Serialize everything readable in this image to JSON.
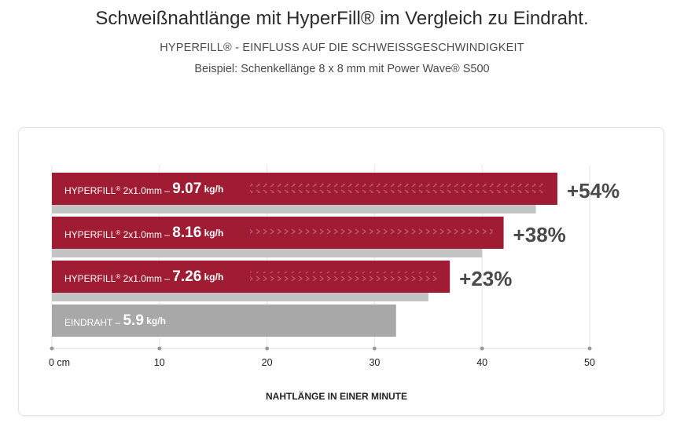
{
  "header": {
    "title": "Schweißnahtlänge mit HyperFill® im Vergleich zu Eindraht.",
    "subtitle": "HYPERFILL® - EINFLUSS AUF DIE SCHWEISSGESCHWINDIGKEIT",
    "example": "Beispiel: Schenkellänge 8 x 8 mm mit Power Wave® S500"
  },
  "colors": {
    "hyperfill": "#a01c33",
    "eindraht": "#a8a8a8",
    "shadow": "#c4c4c4",
    "percent": "#4a4a4a"
  },
  "chart_data": {
    "type": "bar",
    "orientation": "horizontal",
    "xlabel": "NAHTLÄNGE IN EINER MINUTE",
    "xlim": [
      0,
      50
    ],
    "x_ticks": [
      {
        "value": 0,
        "label": "0 cm"
      },
      {
        "value": 10,
        "label": "10"
      },
      {
        "value": 20,
        "label": "20"
      },
      {
        "value": 30,
        "label": "30"
      },
      {
        "value": 40,
        "label": "40"
      },
      {
        "value": 50,
        "label": "50"
      }
    ],
    "grid": true,
    "bars": [
      {
        "name": "HYPERFILL",
        "sup": "®",
        "spec": "2x1.0mm",
        "rate": "9.07",
        "unit": "kg/h",
        "value": 47,
        "shadow_value": 45,
        "gain": "+54%",
        "kind": "hyperfill"
      },
      {
        "name": "HYPERFILL",
        "sup": "®",
        "spec": "2x1.0mm",
        "rate": "8.16",
        "unit": "kg/h",
        "value": 42,
        "shadow_value": 40,
        "gain": "+38%",
        "kind": "hyperfill"
      },
      {
        "name": "HYPERFILL",
        "sup": "®",
        "spec": "2x1.0mm",
        "rate": "7.26",
        "unit": "kg/h",
        "value": 37,
        "shadow_value": 35,
        "gain": "+23%",
        "kind": "hyperfill"
      },
      {
        "name": "EINDRAHT",
        "sup": "",
        "spec": "",
        "rate": "5.9",
        "unit": "kg/h",
        "value": 32,
        "shadow_value": null,
        "gain": "",
        "kind": "eindraht"
      }
    ]
  }
}
